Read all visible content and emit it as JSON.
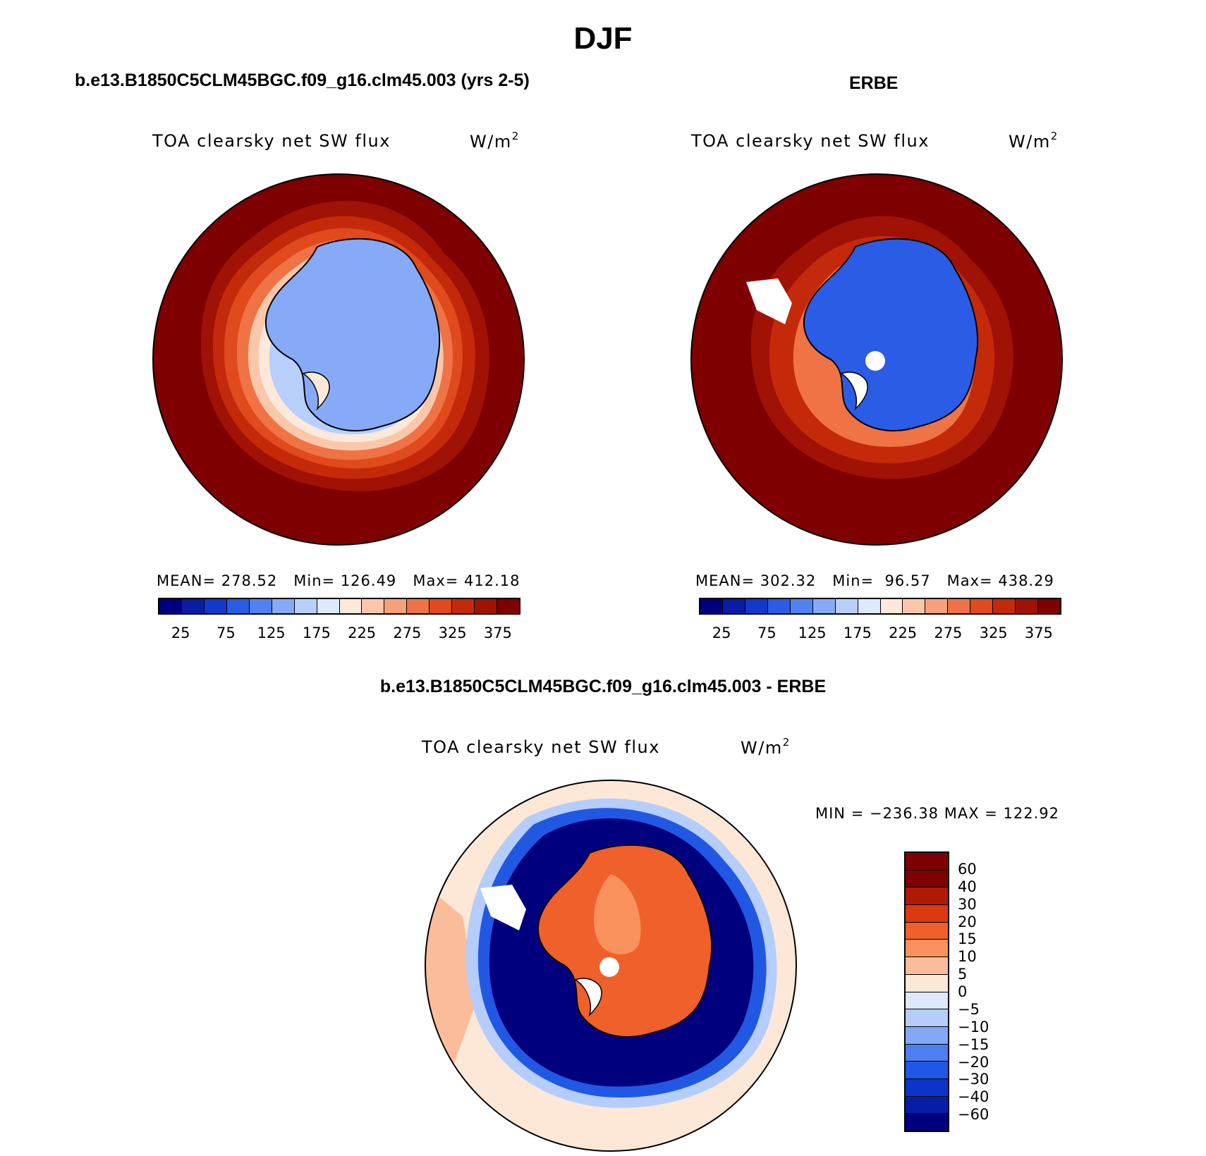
{
  "title": "DJF",
  "panels": {
    "model": {
      "title": "b.e13.B1850C5CLM45BGC.f09_g16.clm45.003 (yrs 2-5)",
      "variable": "TOA clearsky net SW flux",
      "units": "W/m",
      "units_exp": "2",
      "mean_label": "MEAN=",
      "mean": "278.52",
      "min_label": "Min=",
      "min": "126.49",
      "max_label": "Max=",
      "max": "412.18"
    },
    "obs": {
      "title": "ERBE",
      "variable": "TOA clearsky net SW flux",
      "units": "W/m",
      "units_exp": "2",
      "mean_label": "MEAN=",
      "mean": "302.32",
      "min_label": "Min=",
      "min": "96.57",
      "max_label": "Max=",
      "max": "438.29"
    },
    "diff": {
      "title": "b.e13.B1850C5CLM45BGC.f09_g16.clm45.003 - ERBE",
      "variable": "TOA clearsky net SW flux",
      "units": "W/m",
      "units_exp": "2",
      "minmax": "MIN = −236.38 MAX = 122.92"
    }
  },
  "colorbar_abs": {
    "colors": [
      "#00007f",
      "#0a1ba6",
      "#1438cc",
      "#2a5ce6",
      "#5282f2",
      "#86aaf8",
      "#b8cffb",
      "#dde9fc",
      "#fde9d9",
      "#fbc7ab",
      "#f7a07b",
      "#ef7345",
      "#e04a1c",
      "#c42a0a",
      "#a01206",
      "#7f0000"
    ],
    "ticks": [
      "25",
      "75",
      "125",
      "175",
      "225",
      "275",
      "325",
      "375"
    ]
  },
  "colorbar_diff": {
    "colors": [
      "#7f0000",
      "#b01a05",
      "#d93a10",
      "#f0602a",
      "#f8915c",
      "#fbbd99",
      "#fde8d8",
      "#dce9fc",
      "#b5cdfb",
      "#84a8f6",
      "#4e7ff0",
      "#2158e3",
      "#0c34c9",
      "#061ea5",
      "#00007f"
    ],
    "ticks": [
      "60",
      "40",
      "30",
      "20",
      "15",
      "10",
      "5",
      "0",
      "−5",
      "−10",
      "−15",
      "−20",
      "−30",
      "−40",
      "−60"
    ]
  },
  "map_colors": {
    "dark_red": "#7f0000",
    "red": "#c42a0a",
    "orange": "#ef7345",
    "peach": "#fbc7ab",
    "cream": "#fde9d9",
    "light_blue": "#b8cffb",
    "mid_blue": "#86aaf8",
    "blue": "#5282f2",
    "dark_blue": "#00007f",
    "navy": "#0a1ba6",
    "land_white": "#ffffff"
  }
}
